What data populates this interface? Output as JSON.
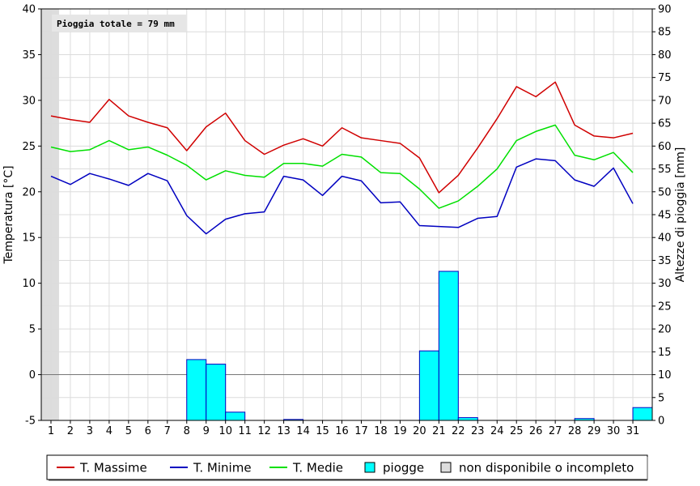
{
  "chart_data": {
    "type": "line",
    "annotation": "Pioggia totale = 79 mm",
    "ylabel_left": "Temperatura [°C]",
    "ylabel_right": "Altezze di pioggia [mm]",
    "x": [
      1,
      2,
      3,
      4,
      5,
      6,
      7,
      8,
      9,
      10,
      11,
      12,
      13,
      14,
      15,
      16,
      17,
      18,
      19,
      20,
      21,
      22,
      23,
      24,
      25,
      26,
      27,
      28,
      29,
      30,
      31
    ],
    "ylim_left": [
      -5,
      40
    ],
    "yticks_left": [
      -5,
      0,
      5,
      10,
      15,
      20,
      25,
      30,
      35,
      40
    ],
    "ylim_right": [
      0,
      90
    ],
    "yticks_right": [
      0,
      5,
      10,
      15,
      20,
      25,
      30,
      35,
      40,
      45,
      50,
      55,
      60,
      65,
      70,
      75,
      80,
      85,
      90
    ],
    "grid": true,
    "unavailable_days": [
      1
    ],
    "series": [
      {
        "name": "T. Massime",
        "axis": "left",
        "color": "#d00000",
        "values": [
          28.3,
          27.9,
          27.6,
          30.1,
          28.3,
          27.6,
          27.0,
          24.5,
          27.1,
          28.6,
          25.6,
          24.1,
          25.1,
          25.8,
          25.0,
          27.0,
          25.9,
          25.6,
          25.3,
          23.7,
          19.9,
          21.8,
          24.8,
          28.0,
          31.5,
          30.4,
          32.0,
          27.3,
          26.1,
          25.9,
          26.4
        ]
      },
      {
        "name": "T. Minime",
        "axis": "left",
        "color": "#0000c0",
        "values": [
          21.7,
          20.8,
          22.0,
          21.4,
          20.7,
          22.0,
          21.2,
          17.4,
          15.4,
          17.0,
          17.6,
          17.8,
          21.7,
          21.3,
          19.6,
          21.7,
          21.2,
          18.8,
          18.9,
          16.3,
          16.2,
          16.1,
          17.1,
          17.3,
          22.7,
          23.6,
          23.4,
          21.3,
          20.6,
          22.6,
          18.7
        ]
      },
      {
        "name": "T. Medie",
        "axis": "left",
        "color": "#00e000",
        "values": [
          24.9,
          24.4,
          24.6,
          25.6,
          24.6,
          24.9,
          24.0,
          22.9,
          21.3,
          22.3,
          21.8,
          21.6,
          23.1,
          23.1,
          22.8,
          24.1,
          23.8,
          22.1,
          22.0,
          20.3,
          18.2,
          19.0,
          20.6,
          22.5,
          25.6,
          26.6,
          27.3,
          24.0,
          23.5,
          24.3,
          22.1
        ]
      },
      {
        "name": "piogge",
        "axis": "right",
        "type": "bar",
        "color": "#00ffff",
        "values": [
          0,
          0,
          0,
          0,
          0,
          0,
          0,
          13.3,
          12.3,
          1.8,
          0,
          0,
          0.2,
          0,
          0,
          0,
          0,
          0,
          0,
          15.2,
          32.6,
          0.6,
          0,
          0,
          0,
          0,
          0,
          0.4,
          0,
          0,
          2.8
        ]
      }
    ],
    "legend": {
      "placement": "bottom",
      "items": [
        {
          "label": "T. Massime",
          "color": "#d00000",
          "kind": "line"
        },
        {
          "label": "T. Minime",
          "color": "#0000c0",
          "kind": "line"
        },
        {
          "label": "T. Medie",
          "color": "#00e000",
          "kind": "line"
        },
        {
          "label": "piogge",
          "color": "#00ffff",
          "kind": "box"
        },
        {
          "label": "non disponibile o incompleto",
          "color": "#dddddd",
          "kind": "box"
        }
      ]
    }
  }
}
